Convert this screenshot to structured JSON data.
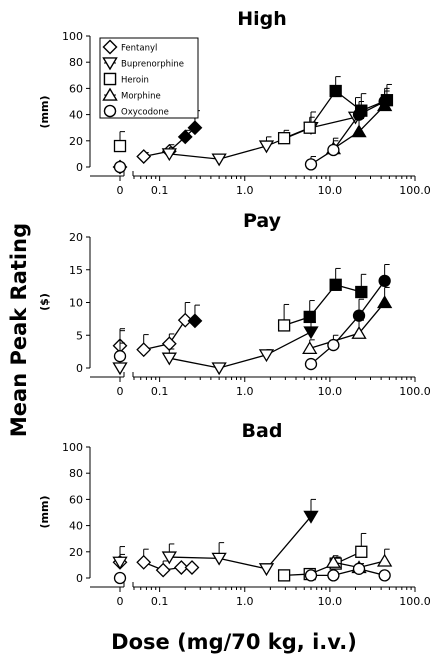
{
  "ylabel": "Mean Peak Rating",
  "xlabel": "Dose (mg/70 kg, i.v.)",
  "legend": {
    "entries": [
      {
        "name": "Fentanyl",
        "marker": "diamond"
      },
      {
        "name": "Buprenorphine",
        "marker": "triangle-down"
      },
      {
        "name": "Heroin",
        "marker": "square"
      },
      {
        "name": "Morphine",
        "marker": "triangle-up"
      },
      {
        "name": "Oxycodone",
        "marker": "circle"
      }
    ]
  },
  "colors": {
    "ink": "#000000",
    "open_fill": "#ffffff",
    "filled": "#000000"
  },
  "chart_data": [
    {
      "type": "line",
      "title": "High",
      "unit": "(mm)",
      "xscale": "log",
      "xlim": [
        0.05,
        100
      ],
      "ylim": [
        0,
        100
      ],
      "yticks": [
        0,
        20,
        40,
        60,
        80,
        100
      ],
      "xticks": [
        0.1,
        1.0,
        10.0,
        100.0
      ],
      "xticklabels": [
        "0.1",
        "1.0",
        "10.0",
        "100.0"
      ],
      "zero_tick_label": "0",
      "series": [
        {
          "name": "Fentanyl",
          "marker": "diamond",
          "placebo": {
            "y": 0,
            "err": 0,
            "filled": false
          },
          "points": [
            {
              "x": 0.065,
              "y": 8,
              "err": 3,
              "filled": false
            },
            {
              "x": 0.13,
              "y": 12,
              "err": 5,
              "filled": false
            },
            {
              "x": 0.2,
              "y": 23,
              "err": 5,
              "filled": true
            },
            {
              "x": 0.26,
              "y": 30,
              "err": 13,
              "filled": true
            }
          ]
        },
        {
          "name": "Buprenorphine",
          "marker": "triangle-down",
          "placebo": null,
          "points": [
            {
              "x": 0.13,
              "y": 10,
              "err": 5,
              "filled": false
            },
            {
              "x": 0.5,
              "y": 6,
              "err": 0,
              "filled": false
            },
            {
              "x": 1.8,
              "y": 16,
              "err": 7,
              "filled": false
            },
            {
              "x": 6,
              "y": 30,
              "err": 12,
              "filled": false
            },
            {
              "x": 20,
              "y": 38,
              "err": 15,
              "filled": false
            }
          ]
        },
        {
          "name": "Heroin",
          "marker": "square",
          "placebo": {
            "y": 16,
            "err": 11,
            "filled": false
          },
          "points": [
            {
              "x": 2.9,
              "y": 22,
              "err": 6,
              "filled": false
            },
            {
              "x": 5.8,
              "y": 30,
              "err": 8,
              "filled": false
            },
            {
              "x": 11.7,
              "y": 58,
              "err": 11,
              "filled": true
            },
            {
              "x": 23.4,
              "y": 43,
              "err": 13,
              "filled": true
            },
            {
              "x": 46.8,
              "y": 51,
              "err": 12,
              "filled": true
            }
          ]
        },
        {
          "name": "Morphine",
          "marker": "triangle-up",
          "placebo": null,
          "points": [
            {
              "x": 11,
              "y": 14,
              "err": 8,
              "filled": false
            },
            {
              "x": 22,
              "y": 27,
              "err": 10,
              "filled": true
            },
            {
              "x": 44,
              "y": 47,
              "err": 11,
              "filled": true
            }
          ]
        },
        {
          "name": "Oxycodone",
          "marker": "circle",
          "placebo": {
            "y": 0,
            "err": 0,
            "filled": false
          },
          "points": [
            {
              "x": 6,
              "y": 2,
              "err": 6,
              "filled": false
            },
            {
              "x": 11,
              "y": 13,
              "err": 7,
              "filled": false
            },
            {
              "x": 22,
              "y": 40,
              "err": 10,
              "filled": true
            },
            {
              "x": 44,
              "y": 50,
              "err": 10,
              "filled": true
            }
          ]
        }
      ]
    },
    {
      "type": "line",
      "title": "Pay",
      "unit": "($)",
      "xscale": "log",
      "xlim": [
        0.05,
        100
      ],
      "ylim": [
        0,
        20
      ],
      "yticks": [
        0,
        5,
        10,
        15,
        20
      ],
      "xticks": [
        0.1,
        1.0,
        10.0,
        100.0
      ],
      "xticklabels": [
        "0.1",
        "1.0",
        "10.0",
        "100.0"
      ],
      "zero_tick_label": "0",
      "series": [
        {
          "name": "Fentanyl",
          "marker": "diamond",
          "placebo": {
            "y": 3.4,
            "err": 2.3,
            "filled": false
          },
          "points": [
            {
              "x": 0.065,
              "y": 2.8,
              "err": 2.3,
              "filled": false
            },
            {
              "x": 0.13,
              "y": 3.7,
              "err": 1.5,
              "filled": false
            },
            {
              "x": 0.2,
              "y": 7.3,
              "err": 2.7,
              "filled": false
            },
            {
              "x": 0.26,
              "y": 7.2,
              "err": 2.4,
              "filled": true
            }
          ]
        },
        {
          "name": "Buprenorphine",
          "marker": "triangle-down",
          "placebo": {
            "y": 0,
            "err": 6,
            "filled": false
          },
          "points": [
            {
              "x": 0.13,
              "y": 1.5,
              "err": 1.4,
              "filled": false
            },
            {
              "x": 0.5,
              "y": 0,
              "err": 0,
              "filled": false
            },
            {
              "x": 1.8,
              "y": 2,
              "err": 0.8,
              "filled": false
            },
            {
              "x": 6,
              "y": 5.5,
              "err": 1.5,
              "filled": true
            }
          ]
        },
        {
          "name": "Heroin",
          "marker": "square",
          "placebo": null,
          "points": [
            {
              "x": 2.9,
              "y": 6.5,
              "err": 3.2,
              "filled": false
            },
            {
              "x": 5.8,
              "y": 7.8,
              "err": 2.5,
              "filled": true
            },
            {
              "x": 11.7,
              "y": 12.7,
              "err": 2.5,
              "filled": true
            },
            {
              "x": 23.4,
              "y": 11.6,
              "err": 2.7,
              "filled": true
            }
          ]
        },
        {
          "name": "Morphine",
          "marker": "triangle-up",
          "placebo": null,
          "points": [
            {
              "x": 5.8,
              "y": 3,
              "err": 1.3,
              "filled": false
            },
            {
              "x": 22,
              "y": 5.3,
              "err": 2,
              "filled": false
            },
            {
              "x": 44,
              "y": 10,
              "err": 2.3,
              "filled": true
            }
          ]
        },
        {
          "name": "Oxycodone",
          "marker": "circle",
          "placebo": {
            "y": 1.8,
            "err": 2,
            "filled": false
          },
          "points": [
            {
              "x": 6,
              "y": 0.6,
              "err": 0,
              "filled": false
            },
            {
              "x": 11,
              "y": 3.5,
              "err": 1.5,
              "filled": false
            },
            {
              "x": 22,
              "y": 8,
              "err": 2.5,
              "filled": true
            },
            {
              "x": 44,
              "y": 13.3,
              "err": 2.5,
              "filled": true
            }
          ]
        }
      ]
    },
    {
      "type": "line",
      "title": "Bad",
      "unit": "(mm)",
      "xscale": "log",
      "xlim": [
        0.05,
        100
      ],
      "ylim": [
        0,
        100
      ],
      "yticks": [
        0,
        20,
        40,
        60,
        80,
        100
      ],
      "xticks": [
        0.1,
        1.0,
        10.0,
        100.0
      ],
      "xticklabels": [
        "0.1",
        "1.0",
        "10.0",
        "100.0"
      ],
      "zero_tick_label": "0",
      "series": [
        {
          "name": "Fentanyl",
          "marker": "diamond",
          "placebo": {
            "y": 12,
            "err": 12,
            "filled": false
          },
          "points": [
            {
              "x": 0.065,
              "y": 12,
              "err": 10,
              "filled": false
            },
            {
              "x": 0.11,
              "y": 6,
              "err": 7,
              "filled": false
            },
            {
              "x": 0.18,
              "y": 8,
              "err": 0,
              "filled": false
            },
            {
              "x": 0.24,
              "y": 8,
              "err": 0,
              "filled": false
            }
          ]
        },
        {
          "name": "Buprenorphine",
          "marker": "triangle-down",
          "placebo": {
            "y": 12,
            "err": 6,
            "filled": false
          },
          "points": [
            {
              "x": 0.13,
              "y": 16,
              "err": 10,
              "filled": false
            },
            {
              "x": 0.5,
              "y": 15,
              "err": 12,
              "filled": false
            },
            {
              "x": 1.8,
              "y": 7,
              "err": 0,
              "filled": false
            },
            {
              "x": 6,
              "y": 47,
              "err": 13,
              "filled": true
            }
          ]
        },
        {
          "name": "Heroin",
          "marker": "square",
          "placebo": null,
          "points": [
            {
              "x": 2.9,
              "y": 2,
              "err": 0,
              "filled": false
            },
            {
              "x": 5.8,
              "y": 3,
              "err": 0,
              "filled": false
            },
            {
              "x": 11.7,
              "y": 11,
              "err": 5,
              "filled": false
            },
            {
              "x": 23.4,
              "y": 20,
              "err": 14,
              "filled": false
            }
          ]
        },
        {
          "name": "Morphine",
          "marker": "triangle-up",
          "placebo": null,
          "points": [
            {
              "x": 11,
              "y": 12,
              "err": 5,
              "filled": false
            },
            {
              "x": 22,
              "y": 8,
              "err": 0,
              "filled": false
            },
            {
              "x": 44,
              "y": 13,
              "err": 9,
              "filled": false
            }
          ]
        },
        {
          "name": "Oxycodone",
          "marker": "circle",
          "placebo": {
            "y": 0,
            "err": 0,
            "filled": false
          },
          "points": [
            {
              "x": 6,
              "y": 2,
              "err": 0,
              "filled": false
            },
            {
              "x": 11,
              "y": 2,
              "err": 0,
              "filled": false
            },
            {
              "x": 22,
              "y": 7,
              "err": 4,
              "filled": false
            },
            {
              "x": 44,
              "y": 2,
              "err": 0,
              "filled": false
            }
          ]
        }
      ]
    }
  ]
}
